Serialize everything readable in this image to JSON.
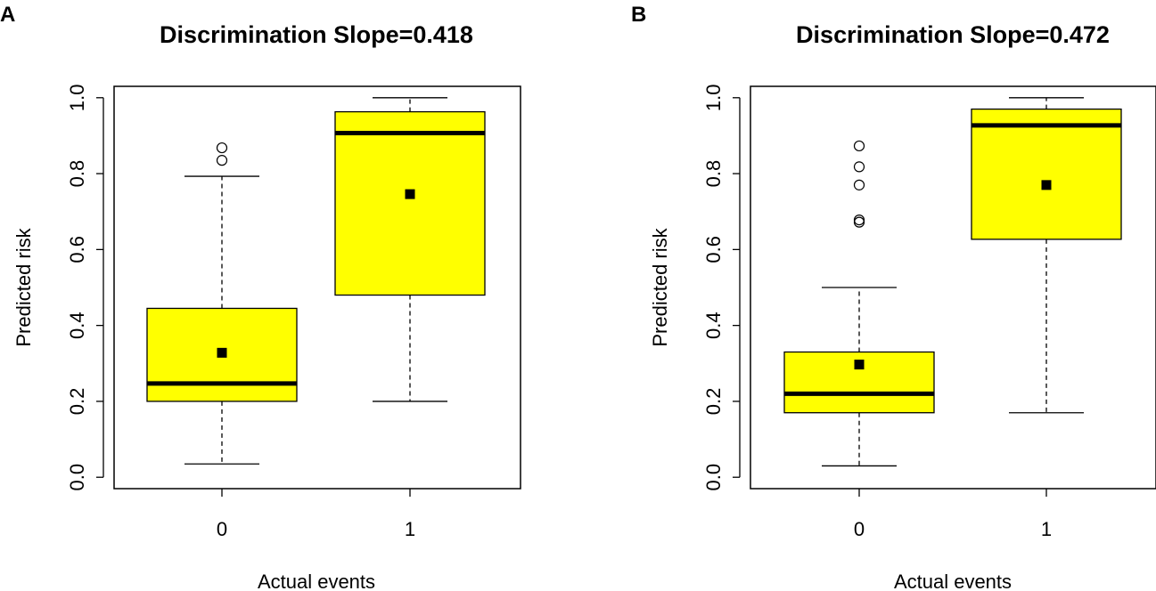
{
  "chart_data": [
    {
      "type": "boxplot",
      "panel_label": "A",
      "title": "Discrimination Slope=0.418",
      "xlabel": "Actual events",
      "ylabel": "Predicted risk",
      "ylim": [
        -0.03,
        1.03
      ],
      "yticks": [
        0.0,
        0.2,
        0.4,
        0.6,
        0.8,
        1.0
      ],
      "ytick_labels": [
        "0.0",
        "0.2",
        "0.4",
        "0.6",
        "0.8",
        "1.0"
      ],
      "categories": [
        "0",
        "1"
      ],
      "boxes": [
        {
          "category": "0",
          "whisker_low": 0.035,
          "q1": 0.2,
          "median": 0.247,
          "q3": 0.445,
          "whisker_high": 0.793,
          "mean": 0.328,
          "outliers": [
            0.835,
            0.868
          ]
        },
        {
          "category": "1",
          "whisker_low": 0.2,
          "q1": 0.48,
          "median": 0.907,
          "q3": 0.963,
          "whisker_high": 1.0,
          "mean": 0.746,
          "outliers": []
        }
      ],
      "colors": {
        "box_fill": "#ffff00",
        "line": "#000000"
      }
    },
    {
      "type": "boxplot",
      "panel_label": "B",
      "title": "Discrimination Slope=0.472",
      "xlabel": "Actual events",
      "ylabel": "Predicted risk",
      "ylim": [
        -0.03,
        1.03
      ],
      "yticks": [
        0.0,
        0.2,
        0.4,
        0.6,
        0.8,
        1.0
      ],
      "ytick_labels": [
        "0.0",
        "0.2",
        "0.4",
        "0.6",
        "0.8",
        "1.0"
      ],
      "categories": [
        "0",
        "1"
      ],
      "boxes": [
        {
          "category": "0",
          "whisker_low": 0.03,
          "q1": 0.17,
          "median": 0.22,
          "q3": 0.33,
          "whisker_high": 0.5,
          "mean": 0.297,
          "outliers": [
            0.672,
            0.678,
            0.77,
            0.818,
            0.873
          ]
        },
        {
          "category": "1",
          "whisker_low": 0.17,
          "q1": 0.627,
          "median": 0.927,
          "q3": 0.97,
          "whisker_high": 1.0,
          "mean": 0.77,
          "outliers": []
        }
      ],
      "colors": {
        "box_fill": "#ffff00",
        "line": "#000000"
      }
    }
  ]
}
